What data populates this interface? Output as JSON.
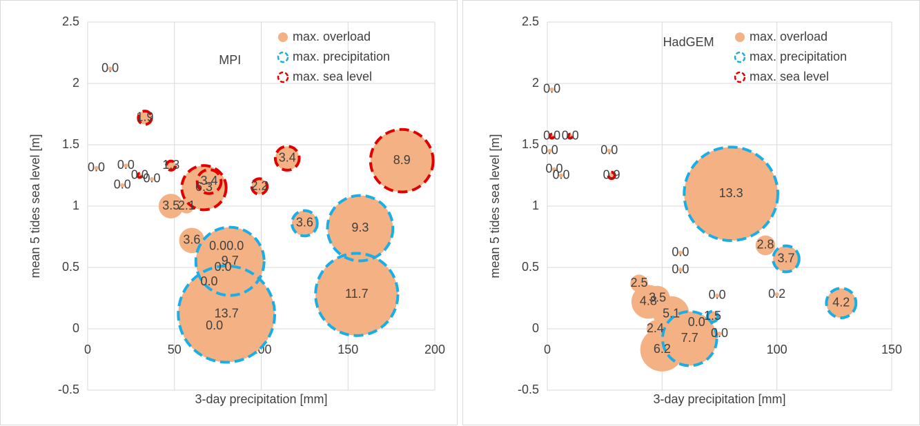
{
  "chart_data": [
    {
      "type": "bubble",
      "annotation": "MPI",
      "x_label": "3-day precipitation [mm]",
      "y_label": "mean 5 tides sea level [m]",
      "xlim": [
        0,
        200
      ],
      "xticks": [
        0,
        50,
        100,
        150,
        200
      ],
      "ylim": [
        -0.5,
        2.5
      ],
      "yticks": [
        -0.5,
        0,
        0.5,
        1,
        1.5,
        2,
        2.5
      ],
      "grid": true,
      "legend": "top-right",
      "series": [
        {
          "name": "max. overload",
          "color": "#f4b183",
          "style": "filled",
          "x": [
            181,
            157,
            155,
            80,
            82,
            67,
            48,
            60,
            125,
            115,
            33,
            48,
            99,
            57,
            70,
            13,
            5,
            22,
            20,
            30,
            37,
            75,
            85,
            78,
            70,
            73
          ],
          "y": [
            1.37,
            0.82,
            0.28,
            0.12,
            0.55,
            1.15,
            1.0,
            0.72,
            0.86,
            1.39,
            1.72,
            1.33,
            1.16,
            1.0,
            1.2,
            2.12,
            1.31,
            1.33,
            1.17,
            1.25,
            1.22,
            0.67,
            0.67,
            0.5,
            0.38,
            0.02
          ],
          "sizes": [
            8.9,
            9.3,
            11.7,
            13.7,
            9.7,
            6.3,
            3.5,
            3.6,
            3.6,
            3.4,
            1.9,
            1.3,
            2.2,
            2.1,
            3.4,
            0,
            0,
            0,
            0,
            0,
            0,
            0,
            0,
            0,
            0,
            0
          ],
          "value_labels": [
            "8.9",
            "9.3",
            "11.7",
            "13.7",
            "9.7",
            "6.3",
            "3.5",
            "3.6",
            "3.6",
            "3.4",
            "1.9",
            "1.3",
            "2.2",
            "2.1",
            "3.4",
            "0.0",
            "0.0",
            "0.0",
            "0.0",
            "0.0",
            "0.0",
            "0.0",
            "0.0",
            "0.0",
            "0.0",
            "0.0"
          ]
        },
        {
          "name": "max. precipitation",
          "color": "#1aaee5",
          "style": "dashed",
          "x": [
            80,
            155,
            157,
            82,
            125
          ],
          "y": [
            0.12,
            0.28,
            0.82,
            0.55,
            0.86
          ],
          "sizes": [
            13.7,
            11.7,
            9.3,
            9.7,
            3.6
          ]
        },
        {
          "name": "max. sea level",
          "color": "#e00000",
          "style": "dashed",
          "x": [
            181,
            115,
            67,
            48,
            33,
            99,
            70,
            30
          ],
          "y": [
            1.37,
            1.39,
            1.15,
            1.33,
            1.72,
            1.16,
            1.2,
            1.25
          ],
          "sizes": [
            8.9,
            3.4,
            6.3,
            1.3,
            1.9,
            2.2,
            3.4,
            0
          ]
        }
      ]
    },
    {
      "type": "bubble",
      "annotation": "HadGEM",
      "x_label": "3-day precipitation [mm]",
      "y_label": "mean 5 tides sea level [m]",
      "xlim": [
        0,
        150
      ],
      "xticks": [
        0,
        50,
        100,
        150
      ],
      "ylim": [
        -0.5,
        2.5
      ],
      "yticks": [
        -0.5,
        0,
        0.5,
        1,
        1.5,
        2,
        2.5
      ],
      "grid": true,
      "legend": "top-right",
      "series": [
        {
          "name": "max. overload",
          "color": "#f4b183",
          "style": "filled",
          "x": [
            80,
            62,
            50,
            104,
            95,
            128,
            44,
            48,
            40,
            54,
            47,
            72,
            100,
            2,
            10,
            1,
            27,
            58,
            58,
            74,
            65,
            75,
            2,
            3,
            6,
            28
          ],
          "y": [
            1.1,
            -0.08,
            -0.17,
            0.57,
            0.68,
            0.21,
            0.22,
            0.25,
            0.37,
            0.12,
            0.0,
            0.1,
            0.28,
            1.57,
            1.57,
            1.45,
            1.45,
            0.62,
            0.48,
            0.27,
            0.05,
            -0.04,
            1.95,
            1.3,
            1.25,
            1.25
          ],
          "sizes": [
            13.3,
            7.7,
            6.2,
            3.7,
            2.8,
            4.2,
            4.8,
            3.5,
            2.5,
            5.1,
            2.4,
            1.5,
            0.2,
            0,
            0,
            0,
            0,
            0,
            0,
            0,
            0,
            0,
            0,
            0,
            0,
            0.9
          ],
          "value_labels": [
            "13.3",
            "7.7",
            "6.2",
            "3.7",
            "2.8",
            "4.2",
            "4.8",
            "3.5",
            "2.5",
            "5.1",
            "2.4",
            "1.5",
            "0.2",
            "0.0",
            "0.0",
            "0.0",
            "0.0",
            "0.0",
            "0.0",
            "0.0",
            "0.0",
            "0.0",
            "0.0",
            "0.0",
            "0.0",
            "0.9"
          ]
        },
        {
          "name": "max. precipitation",
          "color": "#1aaee5",
          "style": "dashed",
          "x": [
            80,
            62,
            104,
            128,
            72
          ],
          "y": [
            1.1,
            -0.08,
            0.57,
            0.21,
            0.1
          ],
          "sizes": [
            13.3,
            7.7,
            3.7,
            4.2,
            1.5
          ]
        },
        {
          "name": "max. sea level",
          "color": "#e00000",
          "style": "dashed",
          "x": [
            28,
            2,
            10
          ],
          "y": [
            1.25,
            1.57,
            1.57
          ],
          "sizes": [
            0.9,
            0,
            0
          ]
        }
      ]
    }
  ]
}
